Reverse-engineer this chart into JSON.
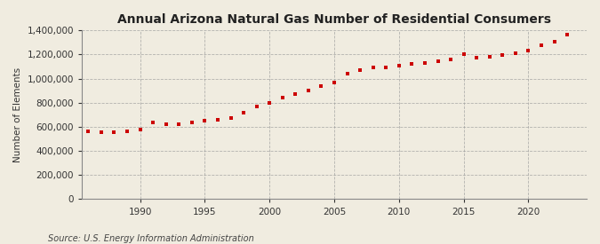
{
  "title": "Annual Arizona Natural Gas Number of Residential Consumers",
  "ylabel": "Number of Elements",
  "source": "Source: U.S. Energy Information Administration",
  "background_color": "#f0ece0",
  "plot_bg_color": "#f0ece0",
  "marker_color": "#cc0000",
  "grid_color": "#999999",
  "years": [
    1986,
    1987,
    1988,
    1989,
    1990,
    1991,
    1992,
    1993,
    1994,
    1995,
    1996,
    1997,
    1998,
    1999,
    2000,
    2001,
    2002,
    2003,
    2004,
    2005,
    2006,
    2007,
    2008,
    2009,
    2010,
    2011,
    2012,
    2013,
    2014,
    2015,
    2016,
    2017,
    2018,
    2019,
    2020,
    2021,
    2022,
    2023
  ],
  "values": [
    562000,
    553000,
    553000,
    562000,
    575000,
    640000,
    620000,
    625000,
    635000,
    648000,
    660000,
    672000,
    720000,
    770000,
    800000,
    840000,
    870000,
    900000,
    940000,
    970000,
    1040000,
    1070000,
    1090000,
    1095000,
    1110000,
    1120000,
    1130000,
    1145000,
    1160000,
    1200000,
    1175000,
    1185000,
    1195000,
    1210000,
    1235000,
    1280000,
    1310000,
    1365000
  ],
  "ylim": [
    0,
    1400000
  ],
  "yticks": [
    0,
    200000,
    400000,
    600000,
    800000,
    1000000,
    1200000,
    1400000
  ],
  "xticks": [
    1990,
    1995,
    2000,
    2005,
    2010,
    2015,
    2020
  ],
  "xlim": [
    1985.5,
    2024.5
  ]
}
